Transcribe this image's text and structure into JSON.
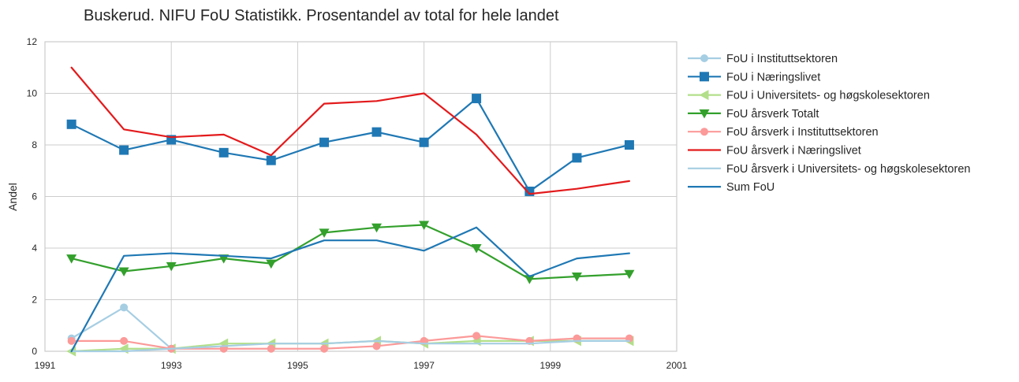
{
  "chart_data": {
    "type": "line",
    "title": "Buskerud. NIFU FoU Statistikk. Prosentandel av total for hele landet",
    "xlabel": "",
    "ylabel": "Andel",
    "xlim": [
      1991,
      2001
    ],
    "ylim": [
      0,
      12
    ],
    "xticks": [
      "1991",
      "1993",
      "1995",
      "1997",
      "1999",
      "2001"
    ],
    "yticks": [
      "0",
      "2",
      "4",
      "6",
      "8",
      "10",
      "12"
    ],
    "grid": true,
    "legend_position": "outside-right",
    "x": [
      1991.42,
      1992.25,
      1993.0,
      1993.83,
      1994.58,
      1995.42,
      1996.25,
      1997.0,
      1997.83,
      1998.67,
      1999.42,
      2000.25
    ],
    "series": [
      {
        "name": "FoU i Instituttsektoren",
        "color": "#a6cee3",
        "marker": "circle",
        "values": [
          0.5,
          1.7,
          0.1,
          null,
          null,
          null,
          null,
          null,
          null,
          null,
          null,
          null
        ]
      },
      {
        "name": "FoU i Næringslivet",
        "color": "#1f78b4",
        "marker": "square",
        "values": [
          8.8,
          7.8,
          8.2,
          7.7,
          7.4,
          8.1,
          8.5,
          8.1,
          9.8,
          6.2,
          7.5,
          8.0
        ]
      },
      {
        "name": "FoU i Universitets- og høgskolesektoren",
        "color": "#b2df8a",
        "marker": "triangle-left",
        "values": [
          0.0,
          0.1,
          0.1,
          0.3,
          0.3,
          0.3,
          0.4,
          0.3,
          0.4,
          0.4,
          0.4,
          0.4
        ]
      },
      {
        "name": "FoU årsverk Totalt",
        "color": "#33a02c",
        "marker": "triangle-down",
        "values": [
          3.6,
          3.1,
          3.3,
          3.6,
          3.4,
          4.6,
          4.8,
          4.9,
          4.0,
          2.8,
          2.9,
          3.0
        ]
      },
      {
        "name": "FoU årsverk i Instituttsektoren",
        "color": "#fb9a99",
        "marker": "circle",
        "values": [
          0.4,
          0.4,
          0.1,
          0.1,
          0.1,
          0.1,
          0.2,
          0.4,
          0.6,
          0.4,
          0.5,
          0.5
        ]
      },
      {
        "name": "FoU årsverk i Næringslivet",
        "color": "#e31a1c",
        "marker": "none",
        "values": [
          11.0,
          8.6,
          8.3,
          8.4,
          7.6,
          9.6,
          9.7,
          10.0,
          8.4,
          6.1,
          6.3,
          6.6
        ]
      },
      {
        "name": "FoU årsverk i Universitets- og høgskolesektoren",
        "color": "#a6cee3",
        "marker": "none",
        "values": [
          0.0,
          0.0,
          0.1,
          0.2,
          0.3,
          0.3,
          0.4,
          0.3,
          0.3,
          0.3,
          0.4,
          0.4
        ]
      },
      {
        "name": "Sum FoU",
        "color": "#1f78b4",
        "marker": "none",
        "values": [
          0.0,
          3.7,
          3.8,
          3.7,
          3.6,
          4.3,
          4.3,
          3.9,
          4.8,
          2.9,
          3.6,
          3.8
        ]
      }
    ]
  }
}
